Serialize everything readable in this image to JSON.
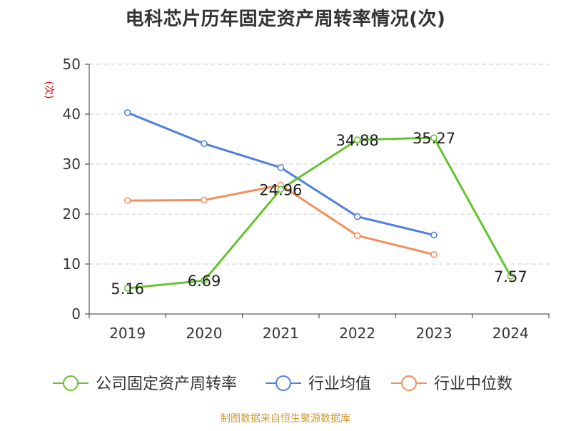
{
  "title": "电科芯片历年固定资产周转率情况(次)",
  "footer": "制图数据来自恒生聚源数据库",
  "colors": {
    "company": "#66c22f",
    "industry_avg": "#4f7fdc",
    "industry_median": "#f38f5b",
    "axis": "#333333",
    "grid": "#cccccc",
    "unit": "#cc0000",
    "title": "#333333",
    "footer": "#d09a34"
  },
  "chart_data": {
    "type": "line",
    "title": "电科芯片历年固定资产周转率情况(次)",
    "ylabel": "(次)",
    "xlabel": "",
    "categories": [
      "2019",
      "2020",
      "2021",
      "2022",
      "2023",
      "2024"
    ],
    "ylim": [
      0,
      50
    ],
    "yticks": [
      0,
      10,
      20,
      30,
      40,
      50
    ],
    "grid": true,
    "legend_position": "bottom",
    "series": [
      {
        "name": "公司固定资产周转率",
        "color": "#66c22f",
        "values": [
          5.16,
          6.69,
          24.96,
          34.88,
          35.27,
          7.57
        ],
        "labels": [
          "5.16",
          "6.69",
          "24.96",
          "34.88",
          "35.27",
          "7.57"
        ],
        "show_labels": true
      },
      {
        "name": "行业均值",
        "color": "#4f7fdc",
        "values": [
          40.3,
          34.1,
          29.3,
          19.5,
          15.8,
          null
        ],
        "show_labels": false
      },
      {
        "name": "行业中位数",
        "color": "#f38f5b",
        "values": [
          22.7,
          22.8,
          25.8,
          15.7,
          11.9,
          null
        ],
        "show_labels": false
      }
    ]
  }
}
